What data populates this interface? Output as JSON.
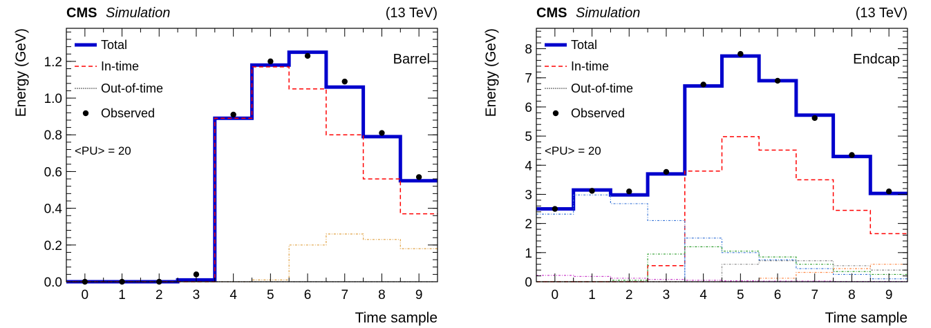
{
  "chart_data": [
    {
      "type": "step",
      "header_bold": "CMS",
      "header_italic": "Simulation",
      "energy": "(13 TeV)",
      "region_label": "Barrel",
      "pu_label": "<PU> = 20",
      "xlabel": "Time sample",
      "ylabel": "Energy (GeV)",
      "xlim": [
        -0.5,
        9.5
      ],
      "ylim": [
        0,
        1.38
      ],
      "x_ticks": [
        0,
        1,
        2,
        3,
        4,
        5,
        6,
        7,
        8,
        9
      ],
      "y_ticks": [
        0.0,
        0.2,
        0.4,
        0.6,
        0.8,
        1.0,
        1.2
      ],
      "y_tick_labels": [
        "0.0",
        "0.2",
        "0.4",
        "0.6",
        "0.8",
        "1.0",
        "1.2"
      ],
      "legend": [
        "Total",
        "In-time",
        "Out-of-time",
        "Observed"
      ],
      "series": [
        {
          "name": "Total",
          "style": "total",
          "color": "#0000cc",
          "values": [
            0,
            0,
            0,
            0.01,
            0.89,
            1.18,
            1.25,
            1.06,
            0.79,
            0.55
          ]
        },
        {
          "name": "In-time",
          "style": "intime",
          "color": "#ff0000",
          "values": [
            0,
            0,
            0,
            0,
            0.89,
            1.17,
            1.05,
            0.8,
            0.56,
            0.37
          ]
        },
        {
          "style": "oot",
          "color": "#e0a040",
          "values": [
            0,
            0,
            0,
            0,
            0,
            0.01,
            0.2,
            0.26,
            0.23,
            0.18
          ]
        },
        {
          "style": "oot",
          "color": "#666666",
          "values": [
            0,
            0,
            0,
            0,
            0,
            0,
            0,
            0,
            0,
            0
          ]
        }
      ],
      "observed": [
        {
          "x": 0,
          "y": 0.0
        },
        {
          "x": 1,
          "y": 0.0
        },
        {
          "x": 2,
          "y": 0.0
        },
        {
          "x": 3,
          "y": 0.04
        },
        {
          "x": 4,
          "y": 0.91
        },
        {
          "x": 5,
          "y": 1.2
        },
        {
          "x": 6,
          "y": 1.23
        },
        {
          "x": 7,
          "y": 1.09
        },
        {
          "x": 8,
          "y": 0.81
        },
        {
          "x": 9,
          "y": 0.57
        }
      ]
    },
    {
      "type": "step",
      "header_bold": "CMS",
      "header_italic": "Simulation",
      "energy": "(13 TeV)",
      "region_label": "Endcap",
      "pu_label": "<PU> = 20",
      "xlabel": "Time sample",
      "ylabel": "Energy (GeV)",
      "xlim": [
        -0.5,
        9.5
      ],
      "ylim": [
        0,
        8.7
      ],
      "x_ticks": [
        0,
        1,
        2,
        3,
        4,
        5,
        6,
        7,
        8,
        9
      ],
      "y_ticks": [
        0,
        1,
        2,
        3,
        4,
        5,
        6,
        7,
        8
      ],
      "y_tick_labels": [
        "0",
        "1",
        "2",
        "3",
        "4",
        "5",
        "6",
        "7",
        "8"
      ],
      "legend": [
        "Total",
        "In-time",
        "Out-of-time",
        "Observed"
      ],
      "series": [
        {
          "name": "Total",
          "style": "total",
          "color": "#0000cc",
          "values": [
            2.5,
            3.15,
            2.98,
            3.7,
            6.72,
            7.75,
            6.9,
            5.72,
            4.3,
            3.03
          ]
        },
        {
          "name": "In-time",
          "style": "intime",
          "color": "#ff0000",
          "values": [
            0,
            0,
            0,
            0.55,
            3.8,
            4.98,
            4.52,
            3.5,
            2.45,
            1.65
          ]
        },
        {
          "style": "oot",
          "color": "#3c78d8",
          "values": [
            2.32,
            2.98,
            2.68,
            2.1,
            0.0,
            0,
            0,
            0,
            0,
            0
          ]
        },
        {
          "style": "oot",
          "color": "#3c78d8",
          "values": [
            0,
            0,
            0,
            0,
            1.5,
            1.0,
            0.75,
            0.45,
            0.25,
            0.1
          ]
        },
        {
          "style": "oot",
          "color": "#2e9e2e",
          "values": [
            0,
            0,
            0.05,
            0.95,
            1.2,
            1.05,
            0.85,
            0.6,
            0.35,
            0.25
          ]
        },
        {
          "style": "oot",
          "color": "#888888",
          "values": [
            0,
            0,
            0,
            0,
            0,
            0.6,
            0.72,
            0.72,
            0.55,
            0.4
          ]
        },
        {
          "style": "oot",
          "color": "#ff8844",
          "values": [
            0,
            0,
            0,
            0,
            0,
            0,
            0.12,
            0.32,
            0.45,
            0.6
          ]
        },
        {
          "style": "oot",
          "color": "#cc44cc",
          "values": [
            0.22,
            0.18,
            0.12,
            0.08,
            0.05,
            0.03,
            0.02,
            0.02,
            0.01,
            0.01
          ]
        }
      ],
      "observed": [
        {
          "x": 0,
          "y": 2.5
        },
        {
          "x": 1,
          "y": 3.12
        },
        {
          "x": 2,
          "y": 3.1
        },
        {
          "x": 3,
          "y": 3.77
        },
        {
          "x": 4,
          "y": 6.77
        },
        {
          "x": 5,
          "y": 7.82
        },
        {
          "x": 6,
          "y": 6.9
        },
        {
          "x": 7,
          "y": 5.62
        },
        {
          "x": 8,
          "y": 4.35
        },
        {
          "x": 9,
          "y": 3.1
        }
      ]
    }
  ]
}
